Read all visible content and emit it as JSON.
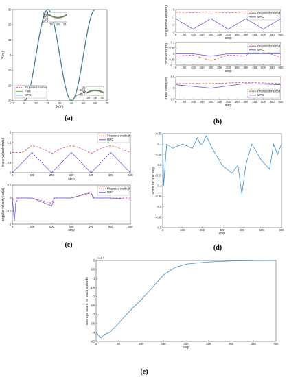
{
  "colors": {
    "proposed": "#e8474c",
    "mpc": "#5b5bdc",
    "path": "#43c443",
    "score": "#3a8fd0",
    "axis": "#333333"
  },
  "chart_data": [
    {
      "id": "a",
      "type": "line",
      "caption": "(a)",
      "xlabel": "X(m)",
      "ylabel": "Y(m)",
      "xlim": [
        -10,
        70
      ],
      "ylim": [
        -30,
        30
      ],
      "xticks": [
        -10,
        0,
        10,
        20,
        30,
        40,
        50,
        60,
        70
      ],
      "yticks": [
        -30,
        -20,
        -10,
        0,
        10,
        20,
        30
      ],
      "legend": "bottom-left",
      "series": [
        {
          "name": "Proposed method",
          "x": [
            0,
            20,
            40,
            60
          ],
          "y": [
            -30,
            30,
            -30,
            30
          ]
        },
        {
          "name": "Path",
          "x": [
            0,
            20,
            40,
            60
          ],
          "y": [
            -30,
            30,
            -30,
            30
          ]
        },
        {
          "name": "MPC",
          "x": [
            0,
            20,
            40,
            60
          ],
          "y": [
            -30,
            30,
            -30,
            30
          ]
        }
      ],
      "inset_top": {
        "yticks": [
          "30.5",
          "30",
          "29.5",
          "29",
          "28.5"
        ],
        "xticks": [
          "19",
          "20",
          "21"
        ]
      },
      "inset_bottom": {
        "yticks": [
          "-29",
          "-29.5",
          "-30",
          "-30.5"
        ],
        "xticks": [
          "39",
          "40",
          "41"
        ]
      }
    },
    {
      "id": "b1",
      "type": "line",
      "ylabel": "longitudinal error(m)",
      "xlabel": "step",
      "xlim": [
        0,
        600
      ],
      "ylim": [
        -3,
        0
      ],
      "xticks": [
        0,
        50,
        100,
        150,
        200,
        250,
        300,
        350,
        400,
        450,
        500,
        550,
        600
      ],
      "yticks": [
        0,
        -1,
        -2,
        -3
      ],
      "legend": "top-right",
      "series": [
        {
          "name": "Proposed method",
          "x": [
            0,
            100,
            200,
            300,
            400,
            500,
            600
          ],
          "y": [
            -0.35,
            -0.4,
            -0.3,
            -0.45,
            -0.3,
            -0.4,
            -0.3
          ]
        },
        {
          "name": "MPC",
          "x": [
            0,
            100,
            200,
            300,
            400,
            500,
            600
          ],
          "y": [
            -1.2,
            -2.6,
            -1.2,
            -2.6,
            -1.2,
            -2.6,
            -1.2
          ]
        }
      ]
    },
    {
      "id": "b2",
      "type": "line",
      "ylabel": "cross error(m)",
      "xlabel": "step",
      "xlim": [
        0,
        600
      ],
      "ylim": [
        -0.1,
        0.1
      ],
      "xticks": [
        0,
        50,
        100,
        150,
        200,
        250,
        300,
        350,
        400,
        450,
        500,
        550,
        600
      ],
      "yticks": [
        0.1,
        0.05,
        0,
        -0.05,
        -0.1
      ],
      "legend": "top-right",
      "series": [
        {
          "name": "Proposed method",
          "x": [
            0,
            100,
            200,
            300,
            400,
            450,
            500,
            600
          ],
          "y": [
            -0.02,
            -0.01,
            -0.06,
            -0.01,
            -0.02,
            0.06,
            0.02,
            -0.03
          ]
        },
        {
          "name": "MPC",
          "x": [
            0,
            100,
            200,
            300,
            400,
            500,
            600
          ],
          "y": [
            0.0,
            0.0,
            -0.02,
            0.0,
            0.0,
            0.0,
            0.0
          ]
        }
      ]
    },
    {
      "id": "b3",
      "type": "line",
      "ylabel": "theta error(rad)",
      "xlabel": "step",
      "xlim": [
        0,
        600
      ],
      "ylim": [
        -0.5,
        0.5
      ],
      "xticks": [
        0,
        50,
        100,
        150,
        200,
        250,
        300,
        350,
        400,
        450,
        500,
        550,
        600
      ],
      "yticks": [
        0.5,
        0,
        -0.5
      ],
      "legend": "bottom-right",
      "caption": "(b)",
      "series": [
        {
          "name": "Proposed method",
          "x": [
            0,
            200,
            400,
            600
          ],
          "y": [
            0.2,
            0.2,
            0.25,
            0.2
          ]
        },
        {
          "name": "MPC",
          "x": [
            0,
            200,
            400,
            600
          ],
          "y": [
            0.15,
            0.0,
            0.2,
            0.15
          ]
        }
      ]
    },
    {
      "id": "c1",
      "type": "line",
      "ylabel": "linear velocity(m/s)",
      "xlabel": "step",
      "xlim": [
        0,
        600
      ],
      "ylim": [
        0,
        2
      ],
      "xticks": [
        0,
        100,
        200,
        300,
        400,
        500,
        600
      ],
      "yticks": [
        0,
        0.5,
        1,
        1.5,
        2
      ],
      "legend": "top-right",
      "series": [
        {
          "name": "Proposed method",
          "x": [
            0,
            50,
            100,
            150,
            200,
            250,
            300,
            350,
            400,
            450,
            500,
            550,
            600
          ],
          "y": [
            1.0,
            1.0,
            1.35,
            1.2,
            0.95,
            1.2,
            1.35,
            1.2,
            0.95,
            1.2,
            1.35,
            1.2,
            1.0
          ]
        },
        {
          "name": "MPC",
          "x": [
            0,
            50,
            100,
            150,
            200,
            250,
            300,
            350,
            400,
            450,
            500,
            550,
            600
          ],
          "y": [
            0.0,
            0.5,
            1.0,
            0.5,
            0.0,
            0.5,
            1.0,
            0.5,
            0.0,
            0.5,
            1.0,
            0.5,
            0.0
          ]
        }
      ]
    },
    {
      "id": "c2",
      "type": "line",
      "ylabel": "angular velocity(rad/s)",
      "xlabel": "step",
      "xlim": [
        0,
        600
      ],
      "ylim": [
        -1,
        0.5
      ],
      "xticks": [
        0,
        100,
        200,
        300,
        400,
        500,
        600
      ],
      "yticks": [
        0.5,
        0,
        -0.5,
        -1
      ],
      "legend": "top-right",
      "caption": "(c)",
      "series": [
        {
          "name": "Proposed method",
          "x": [
            0,
            15,
            30,
            100,
            200,
            210,
            300,
            400,
            410,
            500,
            600
          ],
          "y": [
            0.0,
            -0.25,
            0.0,
            0.0,
            -0.2,
            0.0,
            0.0,
            0.25,
            0.0,
            0.0,
            0.0
          ]
        },
        {
          "name": "MPC",
          "x": [
            0,
            10,
            20,
            100,
            200,
            215,
            300,
            400,
            415,
            500,
            600
          ],
          "y": [
            0.0,
            -0.9,
            0.0,
            0.0,
            -0.3,
            0.0,
            0.0,
            0.2,
            0.0,
            0.0,
            -0.05
          ]
        }
      ]
    },
    {
      "id": "d",
      "type": "line",
      "ylabel": "score for one step",
      "xlabel": "step",
      "xlim": [
        0,
        600
      ],
      "ylim": [
        -0.5,
        -0.05
      ],
      "xticks": [
        0,
        100,
        200,
        300,
        400,
        500,
        600
      ],
      "yticks": [
        -0.05,
        -0.1,
        -0.15,
        -0.2,
        -0.25,
        -0.3,
        -0.35,
        -0.4,
        -0.45,
        -0.5
      ],
      "caption": "(d)",
      "series": [
        {
          "name": "",
          "x": [
            0,
            5,
            20,
            50,
            100,
            150,
            175,
            190,
            200,
            220,
            250,
            300,
            350,
            380,
            400,
            420,
            450,
            500,
            540,
            560,
            580,
            600
          ],
          "y": [
            -0.05,
            -0.3,
            -0.1,
            -0.12,
            -0.1,
            -0.12,
            -0.07,
            -0.1,
            -0.1,
            -0.06,
            -0.12,
            -0.2,
            -0.24,
            -0.2,
            -0.34,
            -0.2,
            -0.1,
            -0.18,
            -0.22,
            -0.1,
            -0.15,
            -0.1
          ]
        }
      ]
    },
    {
      "id": "e",
      "type": "line",
      "ylabel": "average score for each episode",
      "xlabel": "step",
      "xlim": [
        0,
        400
      ],
      "ylim": [
        -4.5,
        0
      ],
      "xticks": [
        0,
        50,
        100,
        150,
        200,
        250,
        300,
        350,
        400
      ],
      "yticks": [
        0,
        -0.5,
        -1,
        -1.5,
        -2,
        -2.5,
        -3,
        -3.5,
        -4,
        -4.5
      ],
      "yexp": "×10⁴",
      "caption": "(e)",
      "series": [
        {
          "name": "",
          "x": [
            0,
            10,
            20,
            30,
            50,
            75,
            100,
            125,
            150,
            175,
            200,
            250,
            300,
            350,
            400
          ],
          "y": [
            -4.0,
            -4.3,
            -4.1,
            -4.0,
            -3.5,
            -2.8,
            -2.2,
            -1.5,
            -0.8,
            -0.4,
            -0.2,
            -0.08,
            -0.03,
            -0.01,
            0.0
          ]
        }
      ]
    }
  ]
}
